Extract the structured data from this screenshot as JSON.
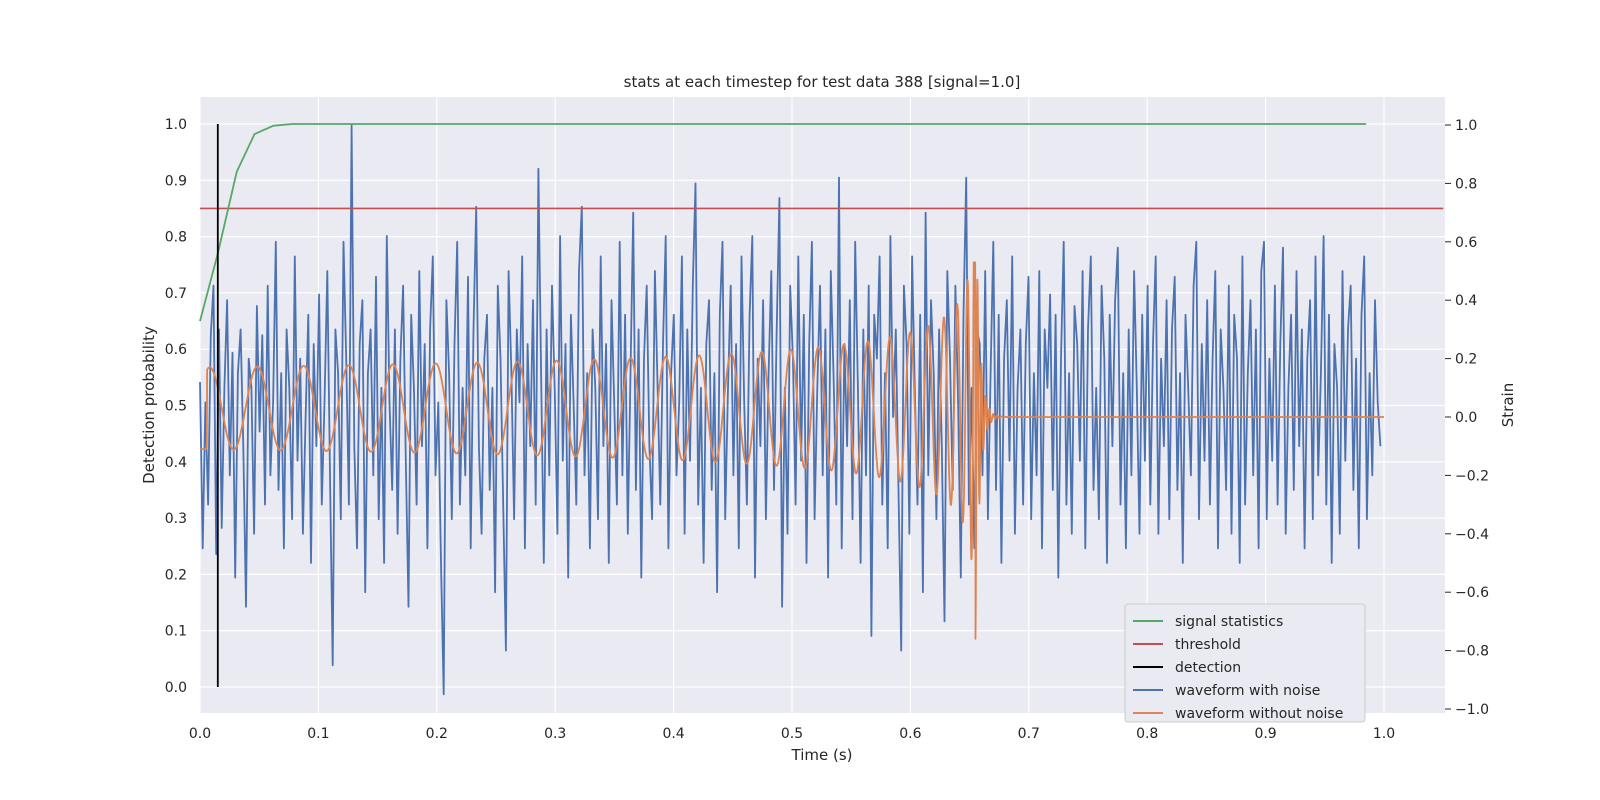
{
  "chart_data": {
    "type": "line",
    "title": "stats at each timestep for test data 388 [signal=1.0]",
    "xlabel": "Time (s)",
    "ylabel_left": "Detection probability",
    "ylabel_right": "Strain",
    "xlim": [
      0.0,
      1.05
    ],
    "ylim_left": [
      -0.045,
      1.045
    ],
    "ylim_right": [
      -1.01,
      1.1
    ],
    "grid": true,
    "legend_placement": "lower-right",
    "xticks": [
      "0.0",
      "0.1",
      "0.2",
      "0.3",
      "0.4",
      "0.5",
      "0.6",
      "0.7",
      "0.8",
      "0.9",
      "1.0"
    ],
    "yticks_left": [
      "0.0",
      "0.1",
      "0.2",
      "0.3",
      "0.4",
      "0.5",
      "0.6",
      "0.7",
      "0.8",
      "0.9",
      "1.0"
    ],
    "yticks_right": [
      "−1.0",
      "−0.8",
      "−0.6",
      "−0.4",
      "−0.2",
      "0.0",
      "0.2",
      "0.4",
      "0.6",
      "0.8",
      "1.0"
    ],
    "series": [
      {
        "name": "signal statistics",
        "axis": "left",
        "color": "#55a868",
        "x": [
          0.0,
          0.015,
          0.031,
          0.046,
          0.062,
          0.078,
          0.1,
          0.2,
          0.4,
          0.6,
          0.8,
          0.985
        ],
        "y": [
          0.65,
          0.77,
          0.915,
          0.982,
          0.997,
          1.0,
          1.0,
          1.0,
          1.0,
          1.0,
          1.0,
          1.0
        ]
      },
      {
        "name": "threshold",
        "axis": "left",
        "color": "#c44e52",
        "x": [
          0.0,
          1.05
        ],
        "y": [
          0.85,
          0.85
        ]
      },
      {
        "name": "detection",
        "axis": "left",
        "color": "#000000",
        "x": [
          0.015,
          0.015
        ],
        "y": [
          0.0,
          1.0
        ]
      },
      {
        "name": "waveform with noise",
        "axis": "right",
        "color": "#4c72b0",
        "x_start": 0.0,
        "x_end": 0.997,
        "y": [
          0.12,
          -0.45,
          0.05,
          -0.3,
          0.28,
          0.45,
          -0.47,
          0.3,
          -0.38,
          0.1,
          0.4,
          -0.2,
          0.22,
          -0.55,
          0.15,
          0.3,
          -0.1,
          -0.65,
          0.2,
          0.1,
          -0.4,
          0.38,
          -0.05,
          0.28,
          -0.3,
          0.45,
          -0.2,
          0.05,
          0.6,
          -0.25,
          0.15,
          -0.45,
          0.3,
          0.1,
          -0.35,
          0.55,
          -0.15,
          0.2,
          -0.4,
          0.0,
          0.35,
          -0.5,
          0.25,
          -0.1,
          0.42,
          -0.3,
          0.05,
          0.5,
          -0.2,
          -0.85,
          0.3,
          0.15,
          -0.35,
          0.6,
          0.2,
          -0.3,
          1.0,
          -0.1,
          -0.45,
          0.25,
          0.4,
          -0.6,
          0.15,
          0.3,
          -0.2,
          0.48,
          -0.35,
          0.1,
          -0.5,
          0.62,
          0.05,
          -0.25,
          0.3,
          -0.4,
          0.2,
          0.45,
          -0.15,
          -0.65,
          0.35,
          0.1,
          -0.3,
          0.5,
          -0.1,
          0.25,
          -0.45,
          0.3,
          0.55,
          -0.2,
          0.05,
          -0.5,
          -0.95,
          0.4,
          0.15,
          -0.35,
          0.25,
          0.6,
          -0.3,
          0.1,
          -0.2,
          0.48,
          -0.45,
          0.3,
          0.72,
          -0.1,
          -0.4,
          0.2,
          0.35,
          -0.25,
          0.1,
          -0.6,
          0.45,
          0.2,
          -0.3,
          -0.8,
          0.5,
          0.15,
          -0.35,
          0.3,
          0.05,
          0.55,
          -0.45,
          0.25,
          -0.1,
          0.4,
          -0.3,
          0.85,
          0.15,
          -0.5,
          0.3,
          -0.2,
          0.45,
          0.1,
          -0.4,
          0.62,
          -0.15,
          0.25,
          -0.55,
          0.35,
          0.05,
          -0.3,
          0.5,
          0.72,
          -0.2,
          0.15,
          -0.45,
          0.3,
          0.1,
          -0.35,
          0.55,
          -0.1,
          0.25,
          -0.5,
          0.4,
          0.05,
          -0.3,
          0.6,
          -0.2,
          0.35,
          -0.4,
          0.15,
          0.7,
          -0.25,
          0.3,
          -0.55,
          0.2,
          0.45,
          -0.1,
          -0.35,
          0.5,
          0.1,
          -0.3,
          0.25,
          0.62,
          -0.45,
          0.15,
          0.35,
          -0.2,
          0.05,
          0.55,
          -0.4,
          0.3,
          -0.15,
          0.45,
          0.8,
          -0.3,
          0.1,
          -0.5,
          0.25,
          0.4,
          -0.25,
          0.15,
          -0.6,
          0.35,
          0.6,
          -0.35,
          0.1,
          0.45,
          -0.2,
          0.25,
          -0.45,
          0.55,
          0.05,
          -0.3,
          0.35,
          0.62,
          -0.55,
          0.2,
          -0.1,
          0.4,
          -0.35,
          0.15,
          0.5,
          -0.25,
          0.3,
          0.75,
          -0.65,
          0.1,
          -0.4,
          0.45,
          0.2,
          -0.3,
          0.55,
          -0.15,
          0.35,
          -0.5,
          0.25,
          0.6,
          -0.35,
          0.1,
          0.45,
          -0.2,
          0.3,
          -0.55,
          0.5,
          0.15,
          -0.3,
          0.82,
          -0.45,
          0.25,
          -0.1,
          0.4,
          -0.35,
          0.6,
          0.1,
          -0.5,
          0.3,
          -0.2,
          0.45,
          -0.75,
          0.35,
          0.2,
          0.55,
          -0.3,
          0.15,
          -0.45,
          0.62,
          0.0,
          0.3,
          -0.25,
          -0.8,
          0.45,
          0.25,
          -0.4,
          0.55,
          0.1,
          -0.3,
          0.35,
          -0.6,
          0.7,
          -0.2,
          0.4,
          0.15,
          -0.35,
          0.3,
          -0.1,
          -0.7,
          0.5,
          0.2,
          -0.25,
          0.45,
          0.05,
          -0.55,
          0.35,
          0.82,
          -0.3,
          0.1,
          -0.45,
          0.3,
          0.25,
          -0.2,
          0.5,
          -0.35,
          0.15,
          0.6,
          -0.25,
          0.35,
          -0.5,
          0.2,
          0.4,
          -0.15,
          0.55,
          -0.4,
          0.1,
          0.3,
          -0.3,
          0.25,
          0.48,
          -0.35,
          0.15,
          -0.2,
          0.5,
          -0.45,
          0.3,
          0.1,
          0.42,
          -0.25,
          0.35,
          -0.55,
          0.2,
          0.6,
          -0.3,
          0.15,
          -0.4,
          0.38,
          0.25,
          -0.15,
          0.5,
          -0.45,
          0.3,
          0.55,
          -0.25,
          0.1,
          -0.35,
          0.45,
          0.2,
          -0.5,
          0.35,
          -0.1,
          0.4,
          0.58,
          -0.3,
          0.15,
          -0.45,
          0.3,
          -0.2,
          0.5,
          0.1,
          -0.4,
          0.35,
          -0.15,
          0.45,
          -0.3,
          0.25,
          0.55,
          -0.4,
          0.2,
          -0.1,
          0.4,
          -0.35,
          0.3,
          0.48,
          -0.25,
          0.15,
          -0.5,
          0.35,
          0.1,
          -0.2,
          0.45,
          0.6,
          -0.35,
          0.25,
          -0.15,
          0.4,
          -0.3,
          0.2,
          0.5,
          -0.45,
          0.3,
          0.1,
          -0.25,
          0.45,
          -0.4,
          0.35,
          0.2,
          -0.5,
          0.55,
          -0.3,
          0.15,
          0.4,
          -0.2,
          0.3,
          -0.45,
          0.5,
          0.6,
          -0.35,
          0.2,
          -0.15,
          0.45,
          -0.3,
          0.25,
          0.58,
          -0.4,
          0.1,
          0.35,
          -0.25,
          0.5,
          -0.1,
          0.3,
          -0.45,
          0.2,
          0.4,
          -0.35,
          0.55,
          -0.2,
          0.15,
          0.62,
          -0.3,
          0.35,
          -0.5,
          0.25,
          0.1,
          -0.4,
          0.5,
          -0.15,
          0.3,
          0.45,
          -0.25,
          0.2,
          -0.45,
          0.35,
          0.55,
          -0.35,
          0.15,
          -0.2,
          0.4,
          0.05,
          -0.1
        ]
      },
      {
        "name": "waveform without noise",
        "axis": "right",
        "color": "#dd8452",
        "x_start": 0.0,
        "x_end": 1.0,
        "merger_time": 0.655,
        "description_points": [
          [
            0.0,
            -0.1
          ],
          [
            0.02,
            0.12
          ],
          [
            0.15,
            0.14
          ],
          [
            0.3,
            0.16
          ],
          [
            0.45,
            0.19
          ],
          [
            0.55,
            0.24
          ],
          [
            0.6,
            0.29
          ],
          [
            0.62,
            0.33
          ],
          [
            0.64,
            0.45
          ],
          [
            0.653,
            0.53
          ],
          [
            0.656,
            -0.76
          ],
          [
            0.665,
            0.05
          ],
          [
            0.7,
            0.0
          ],
          [
            1.0,
            0.0
          ]
        ]
      }
    ]
  }
}
